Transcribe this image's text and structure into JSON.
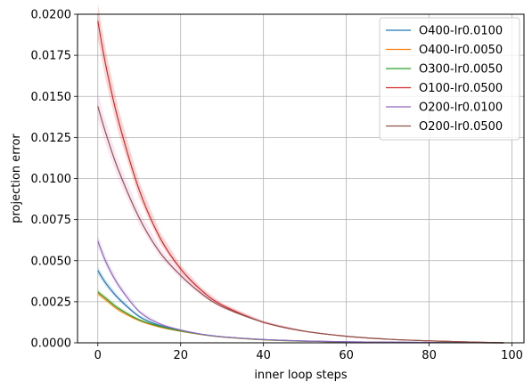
{
  "chart_data": {
    "type": "line",
    "xlabel": "inner loop steps",
    "ylabel": "projection error",
    "xlim": [
      -4.9,
      102.9
    ],
    "ylim": [
      0,
      0.02
    ],
    "xticks": [
      0,
      20,
      40,
      60,
      80,
      100
    ],
    "yticks": [
      0,
      0.0025,
      0.005,
      0.0075,
      0.01,
      0.0125,
      0.015,
      0.0175,
      0.02
    ],
    "xtick_labels": [
      "0",
      "20",
      "40",
      "60",
      "80",
      "100"
    ],
    "ytick_labels": [
      "0.0000",
      "0.0025",
      "0.0050",
      "0.0075",
      "0.0100",
      "0.0125",
      "0.0150",
      "0.0175",
      "0.0200"
    ],
    "grid": true,
    "legend_position": "top-right",
    "x": [
      0,
      2,
      5,
      10,
      15,
      20,
      25,
      30,
      40,
      50,
      60,
      70,
      80,
      90,
      98
    ],
    "series": [
      {
        "name": "O400-lr0.0100",
        "color": "#1f77b4",
        "band_color": "#1f77b4",
        "values": [
          0.0044,
          0.0036,
          0.0027,
          0.0016,
          0.00105,
          0.00075,
          0.00052,
          0.00037,
          0.0002,
          0.00011,
          6e-05,
          4e-05,
          2e-05,
          1e-05,
          0.0
        ]
      },
      {
        "name": "O400-lr0.0050",
        "color": "#ff7f0e",
        "band_color": "#bcbd22",
        "values": [
          0.003,
          0.0026,
          0.002,
          0.00135,
          0.00095,
          0.0007,
          0.0005,
          0.00035,
          0.00018,
          0.0001,
          5e-05,
          3e-05,
          2e-05,
          1e-05,
          0.0
        ]
      },
      {
        "name": "O300-lr0.0050",
        "color": "#2ca02c",
        "band_color": "#2ca02c",
        "values": [
          0.0031,
          0.0027,
          0.0021,
          0.0014,
          0.001,
          0.00072,
          0.00051,
          0.00036,
          0.00019,
          0.0001,
          5e-05,
          3e-05,
          2e-05,
          1e-05,
          0.0
        ]
      },
      {
        "name": "O100-lr0.0500",
        "color": "#d62728",
        "band_color": "#d62728",
        "values": [
          0.0196,
          0.0168,
          0.0135,
          0.0093,
          0.0064,
          0.0045,
          0.0032,
          0.0023,
          0.00125,
          0.0007,
          0.0004,
          0.00022,
          0.00012,
          5e-05,
          0.0
        ]
      },
      {
        "name": "O200-lr0.0100",
        "color": "#9467bd",
        "band_color": "#9467bd",
        "values": [
          0.0062,
          0.0049,
          0.0035,
          0.0019,
          0.00115,
          0.00078,
          0.00053,
          0.00037,
          0.0002,
          0.00011,
          6e-05,
          4e-05,
          2e-05,
          1e-05,
          0.0
        ]
      },
      {
        "name": "O200-lr0.0500",
        "color": "#8c564b",
        "band_color": "#e377c2",
        "values": [
          0.0144,
          0.0127,
          0.0105,
          0.0076,
          0.0055,
          0.0041,
          0.003,
          0.0022,
          0.00125,
          0.0007,
          0.0004,
          0.00022,
          0.00012,
          5e-05,
          0.0
        ]
      }
    ]
  }
}
